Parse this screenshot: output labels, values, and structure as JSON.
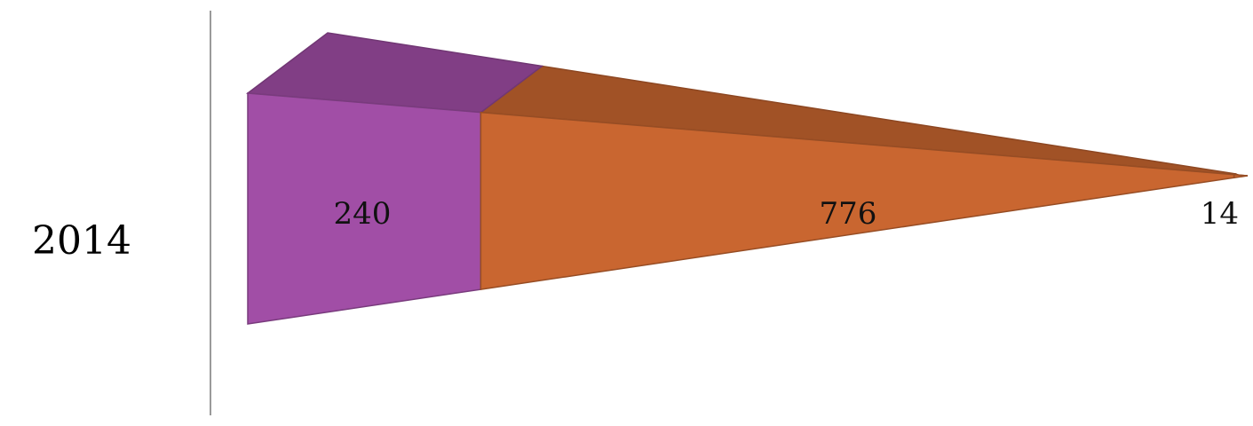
{
  "chart_data": {
    "type": "bar",
    "orientation": "horizontal",
    "stacked": true,
    "three_d": true,
    "shape": "pyramid",
    "categories": [
      "2014"
    ],
    "series": [
      {
        "values": [
          240
        ],
        "color": "#A14EA6",
        "data_label": "240"
      },
      {
        "values": [
          776
        ],
        "color": "#C96630",
        "data_label": "776"
      },
      {
        "values": [
          14
        ],
        "color": "#C96630",
        "data_label": "14"
      }
    ],
    "xlim": [
      0,
      1030
    ],
    "grid": false,
    "legend": "none"
  }
}
